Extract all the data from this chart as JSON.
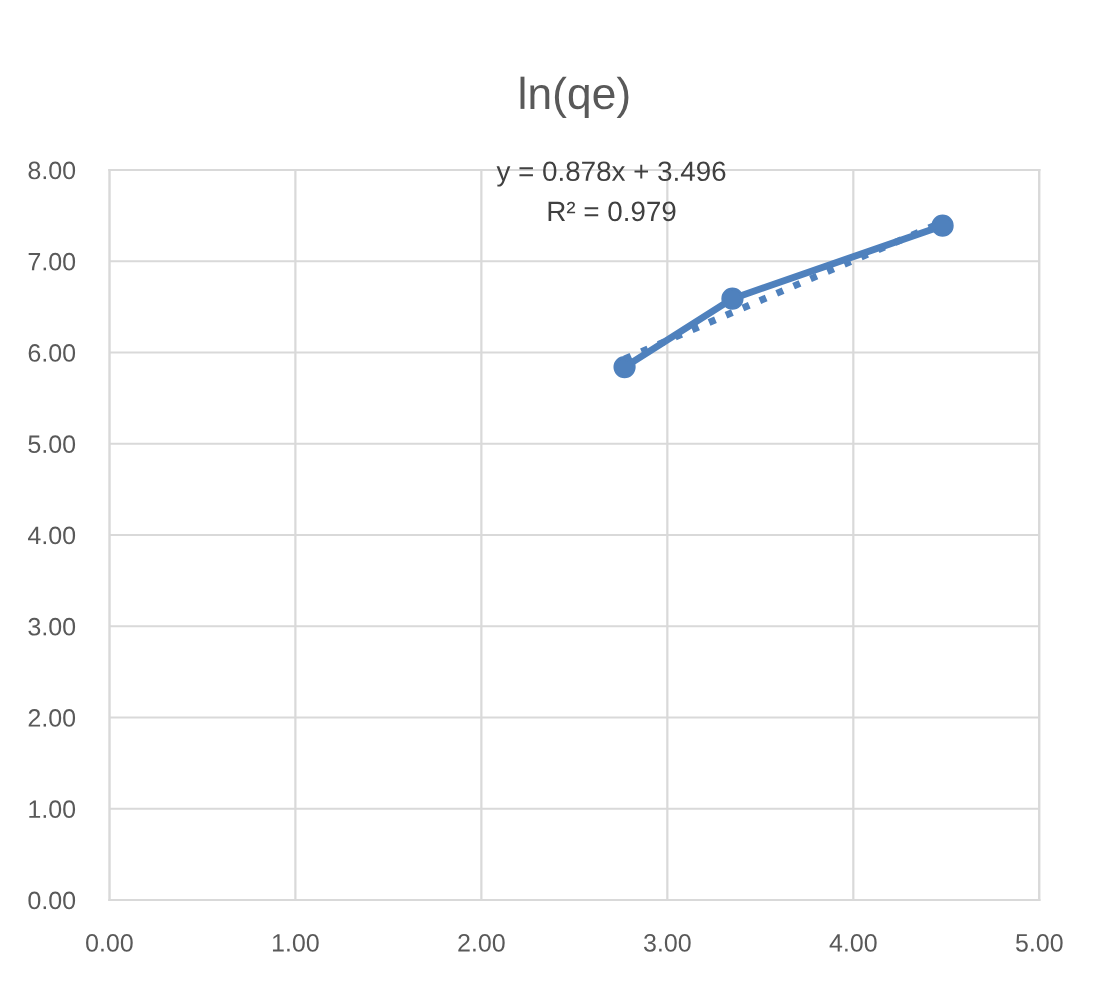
{
  "chart_data": {
    "type": "line",
    "title": "ln(qe)",
    "series": [
      {
        "color": "#4f81bd",
        "x": [
          2.77,
          3.35,
          4.48
        ],
        "values": [
          5.84,
          6.59,
          7.39
        ],
        "marker": "circle",
        "line_style": "solid"
      },
      {
        "type": "line",
        "color": "#4f81bd",
        "x": [
          2.77,
          4.48
        ],
        "values": [
          5.93,
          7.43
        ],
        "marker": "none",
        "line_style": "dotted"
      }
    ],
    "annotations": [
      "y = 0.878x + 3.496",
      "R² = 0.979"
    ],
    "xlim": [
      0,
      5
    ],
    "xticks": [
      {
        "value": 0,
        "label": "0.00"
      },
      {
        "value": 1,
        "label": "1.00"
      },
      {
        "value": 2,
        "label": "2.00"
      },
      {
        "value": 3,
        "label": "3.00"
      },
      {
        "value": 4,
        "label": "4.00"
      },
      {
        "value": 5,
        "label": "5.00"
      }
    ],
    "ylim": [
      0,
      8
    ],
    "yticks": [
      {
        "value": 0,
        "label": "0.00"
      },
      {
        "value": 1,
        "label": "1.00"
      },
      {
        "value": 2,
        "label": "2.00"
      },
      {
        "value": 3,
        "label": "3.00"
      },
      {
        "value": 4,
        "label": "4.00"
      },
      {
        "value": 5,
        "label": "5.00"
      },
      {
        "value": 6,
        "label": "6.00"
      },
      {
        "value": 7,
        "label": "7.00"
      },
      {
        "value": 8,
        "label": "8.00"
      }
    ],
    "grid": true,
    "legend": false
  }
}
